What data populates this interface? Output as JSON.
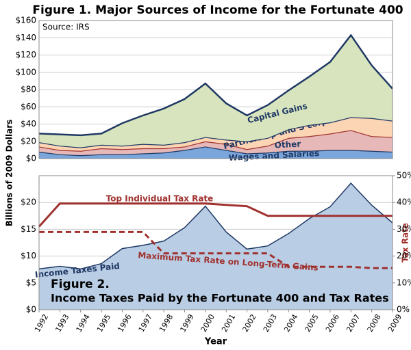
{
  "chart_data": [
    {
      "type": "stacked_area",
      "title": "Figure 1.  Major Sources of Income for the Fortunate 400",
      "subtitle": "Source: IRS",
      "ylabel": "Billions of 2009 Dollars",
      "x": [
        1992,
        1993,
        1994,
        1995,
        1996,
        1997,
        1998,
        1999,
        2000,
        2001,
        2002,
        2003,
        2004,
        2005,
        2006,
        2007,
        2008,
        2009
      ],
      "xlim": [
        1992,
        2009
      ],
      "ylim": [
        0,
        160
      ],
      "yticks": [
        {
          "value": 0,
          "label": "$0"
        },
        {
          "value": 20,
          "label": "$20"
        },
        {
          "value": 40,
          "label": "$40"
        },
        {
          "value": 60,
          "label": "$60"
        },
        {
          "value": 80,
          "label": "$80"
        },
        {
          "value": 100,
          "label": "$100"
        },
        {
          "value": 120,
          "label": "$120"
        },
        {
          "value": 140,
          "label": "$140"
        },
        {
          "value": 160,
          "label": "$160"
        }
      ],
      "grid": true,
      "series": [
        {
          "name": "Wages and Salaries",
          "color": "#7aa6dc",
          "values": [
            8,
            5,
            4,
            5,
            5,
            6,
            7,
            10,
            14,
            10,
            6,
            7,
            9,
            9,
            10,
            10,
            9,
            8
          ]
        },
        {
          "name": "Other",
          "color": "#e6b9b8",
          "values": [
            6,
            5,
            5,
            7,
            6,
            6,
            5,
            4,
            6,
            7,
            5,
            8,
            15,
            17,
            19,
            23,
            17,
            17
          ]
        },
        {
          "name": "Partnership and S corp",
          "color": "#fcd5b4",
          "values": [
            5,
            5,
            4,
            4,
            4,
            5,
            4,
            5,
            5,
            5,
            9,
            9,
            10,
            13,
            13,
            15,
            21,
            19
          ]
        },
        {
          "name": "Capital Gains",
          "color": "#d7e4bd",
          "values": [
            10,
            13,
            14,
            13,
            26,
            33,
            42,
            50,
            62,
            42,
            30,
            38,
            45,
            56,
            70,
            95,
            61,
            37
          ]
        }
      ]
    },
    {
      "type": "area_line",
      "title": "Figure 2.",
      "subtitle": "Income Taxes Paid by the Fortunate 400 and Tax Rates",
      "xlabel": "Year",
      "y2label": "Tax Rate",
      "x": [
        1992,
        1993,
        1994,
        1995,
        1996,
        1997,
        1998,
        1999,
        2000,
        2001,
        2002,
        2003,
        2004,
        2005,
        2006,
        2007,
        2008,
        2009
      ],
      "xlim": [
        1992,
        2009
      ],
      "xticks": [
        1992,
        1993,
        1994,
        1995,
        1996,
        1997,
        1998,
        1999,
        2000,
        2001,
        2002,
        2003,
        2004,
        2005,
        2006,
        2007,
        2008,
        2009
      ],
      "ylim": [
        0,
        25
      ],
      "yticks": [
        {
          "value": 0,
          "label": "$0"
        },
        {
          "value": 5,
          "label": "$5"
        },
        {
          "value": 10,
          "label": "$10"
        },
        {
          "value": 15,
          "label": "$15"
        },
        {
          "value": 20,
          "label": "$20"
        }
      ],
      "y2lim": [
        0,
        50
      ],
      "y2ticks": [
        {
          "value": 0,
          "label": "0%"
        },
        {
          "value": 10,
          "label": "10%"
        },
        {
          "value": 20,
          "label": "20%"
        },
        {
          "value": 30,
          "label": "30%"
        },
        {
          "value": 40,
          "label": "40%"
        },
        {
          "value": 50,
          "label": "50%"
        }
      ],
      "grid": true,
      "series": [
        {
          "name": "Income Taxes Paid",
          "color": "#b9cde5",
          "values": [
            7.6,
            8.1,
            7.6,
            8.6,
            11.4,
            12.0,
            12.8,
            15.3,
            19.3,
            14.5,
            11.3,
            11.9,
            14.2,
            17.0,
            19.2,
            23.6,
            19.5,
            16.2
          ]
        },
        {
          "name": "Top Individual Tax Rate",
          "color": "#a0312e",
          "axis": "y2",
          "values": [
            31,
            39.6,
            39.6,
            39.6,
            39.6,
            39.6,
            39.6,
            39.6,
            39.6,
            39.1,
            38.6,
            35,
            35,
            35,
            35,
            35,
            35,
            35
          ]
        },
        {
          "name": "Maximum Tax Rate on Long-Term Gains",
          "color": "#a0312e",
          "axis": "y2",
          "dashed": true,
          "values": [
            29,
            29,
            29,
            29,
            29,
            29,
            21,
            21,
            21,
            21,
            21,
            21,
            16,
            16,
            16,
            16,
            15.5,
            15.5
          ]
        }
      ]
    }
  ]
}
